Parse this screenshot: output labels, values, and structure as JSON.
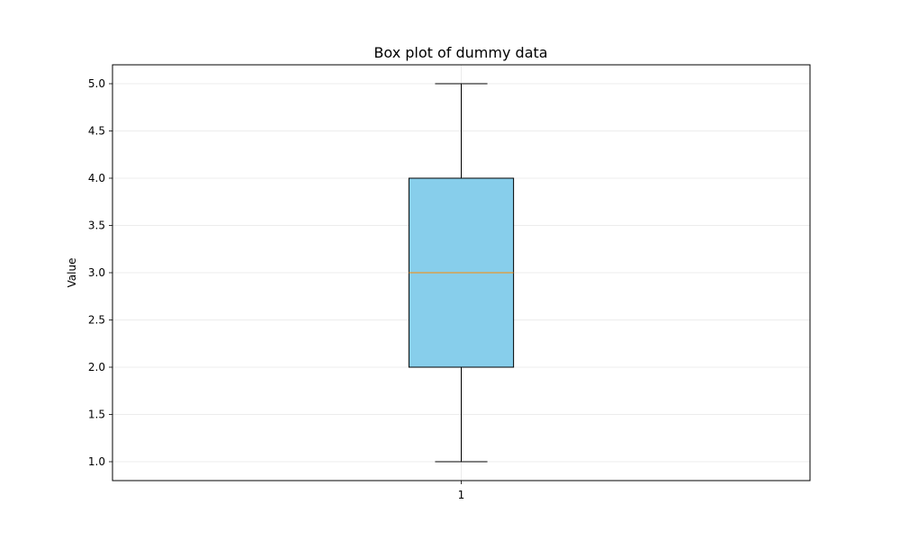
{
  "chart_data": {
    "type": "box",
    "title": "Box plot of dummy data",
    "xlabel": "",
    "ylabel": "Value",
    "categories": [
      "1"
    ],
    "boxes": [
      {
        "category": "1",
        "whisker_low": 1.0,
        "q1": 2.0,
        "median": 3.0,
        "q3": 4.0,
        "whisker_high": 5.0
      }
    ],
    "y_ticks": [
      "1.0",
      "1.5",
      "2.0",
      "2.5",
      "3.0",
      "3.5",
      "4.0",
      "4.5",
      "5.0"
    ],
    "ylim": [
      0.8,
      5.2
    ],
    "grid": true,
    "colors": {
      "box_fill": "#87ceeb",
      "box_edge": "#000000",
      "median": "#ff8c00",
      "whisker": "#000000",
      "grid": "#e6e6e6",
      "axes": "#000000"
    }
  }
}
